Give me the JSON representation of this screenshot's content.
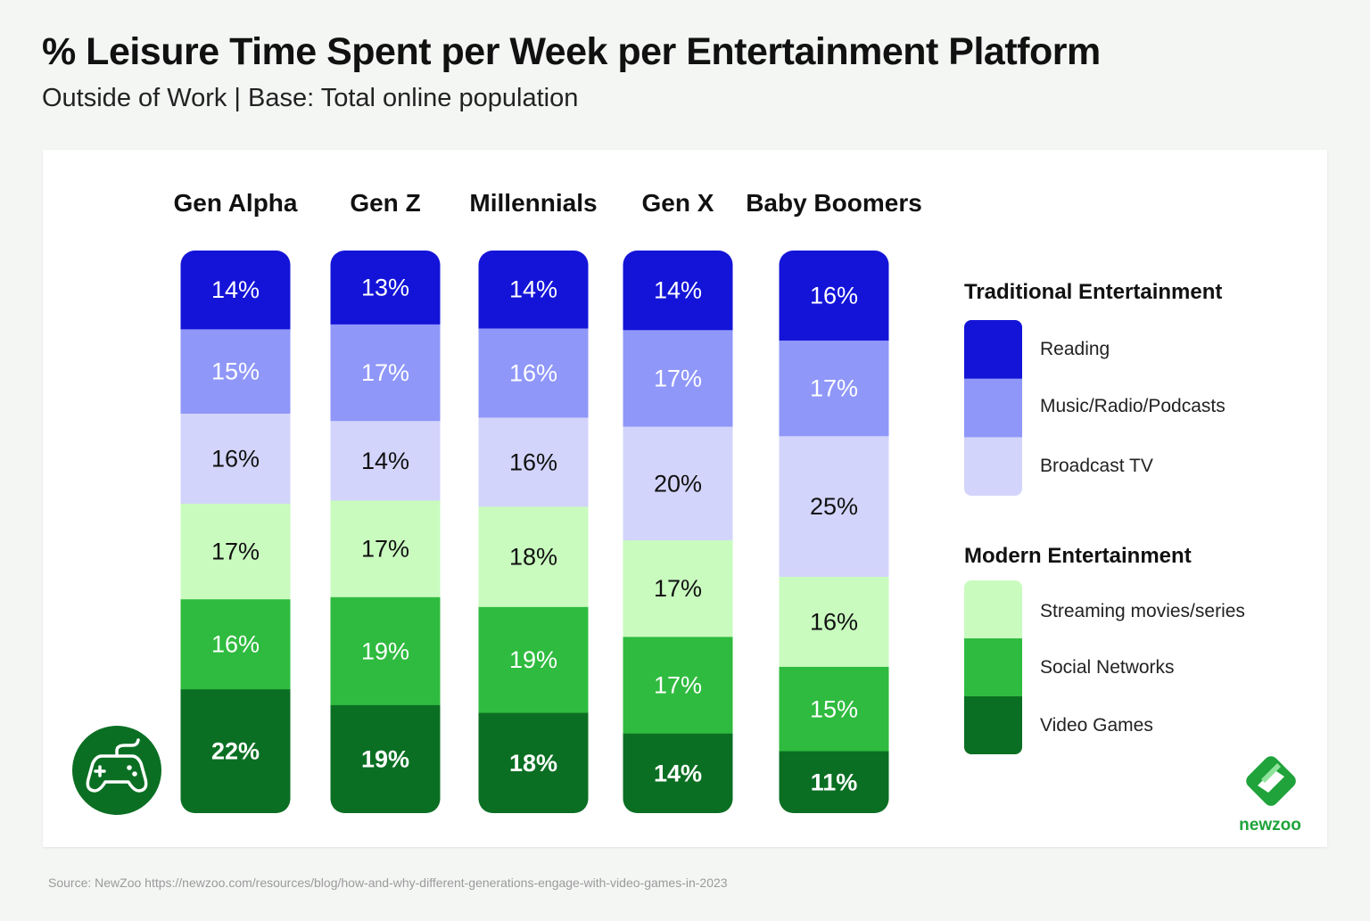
{
  "title": "% Leisure Time Spent per Week per Entertainment Platform",
  "subtitle": "Outside of Work |  Base: Total online population",
  "source": "Source: NewZoo https://newzoo.com/resources/blog/how-and-why-different-generations-engage-with-video-games-in-2023",
  "brand": {
    "name": "newzoo",
    "color": "#1fa33a"
  },
  "icons": {
    "controller": "game-controller-icon",
    "logo": "newzoo-logo-icon"
  },
  "legend": {
    "groups": [
      {
        "title": "Traditional Entertainment",
        "items": [
          "Reading",
          "Music/Radio/Podcasts",
          "Broadcast TV"
        ]
      },
      {
        "title": "Modern Entertainment",
        "items": [
          "Streaming movies/series",
          "Social Networks",
          "Video Games"
        ]
      }
    ]
  },
  "chart_data": {
    "type": "bar",
    "stacked": true,
    "unit": "%",
    "categories": [
      "Gen Alpha",
      "Gen Z",
      "Millennials",
      "Gen X",
      "Baby Boomers"
    ],
    "series": [
      {
        "name": "Reading",
        "color": "#1414d8",
        "values": [
          14,
          13,
          14,
          14,
          16
        ]
      },
      {
        "name": "Music/Radio/Podcasts",
        "color": "#8f97f9",
        "values": [
          15,
          17,
          16,
          17,
          17
        ]
      },
      {
        "name": "Broadcast TV",
        "color": "#d3d4fb",
        "values": [
          16,
          14,
          16,
          20,
          25
        ]
      },
      {
        "name": "Streaming movies/series",
        "color": "#c9fbbf",
        "values": [
          17,
          17,
          18,
          17,
          16
        ]
      },
      {
        "name": "Social Networks",
        "color": "#2fbb3f",
        "values": [
          16,
          19,
          19,
          17,
          15
        ]
      },
      {
        "name": "Video Games",
        "color": "#0b6f23",
        "values": [
          22,
          19,
          18,
          14,
          11
        ]
      }
    ],
    "label_colors": [
      "#ffffff",
      "#ffffff",
      "#111111",
      "#111111",
      "#ffffff",
      "#ffffff"
    ],
    "legend_position": "right"
  }
}
